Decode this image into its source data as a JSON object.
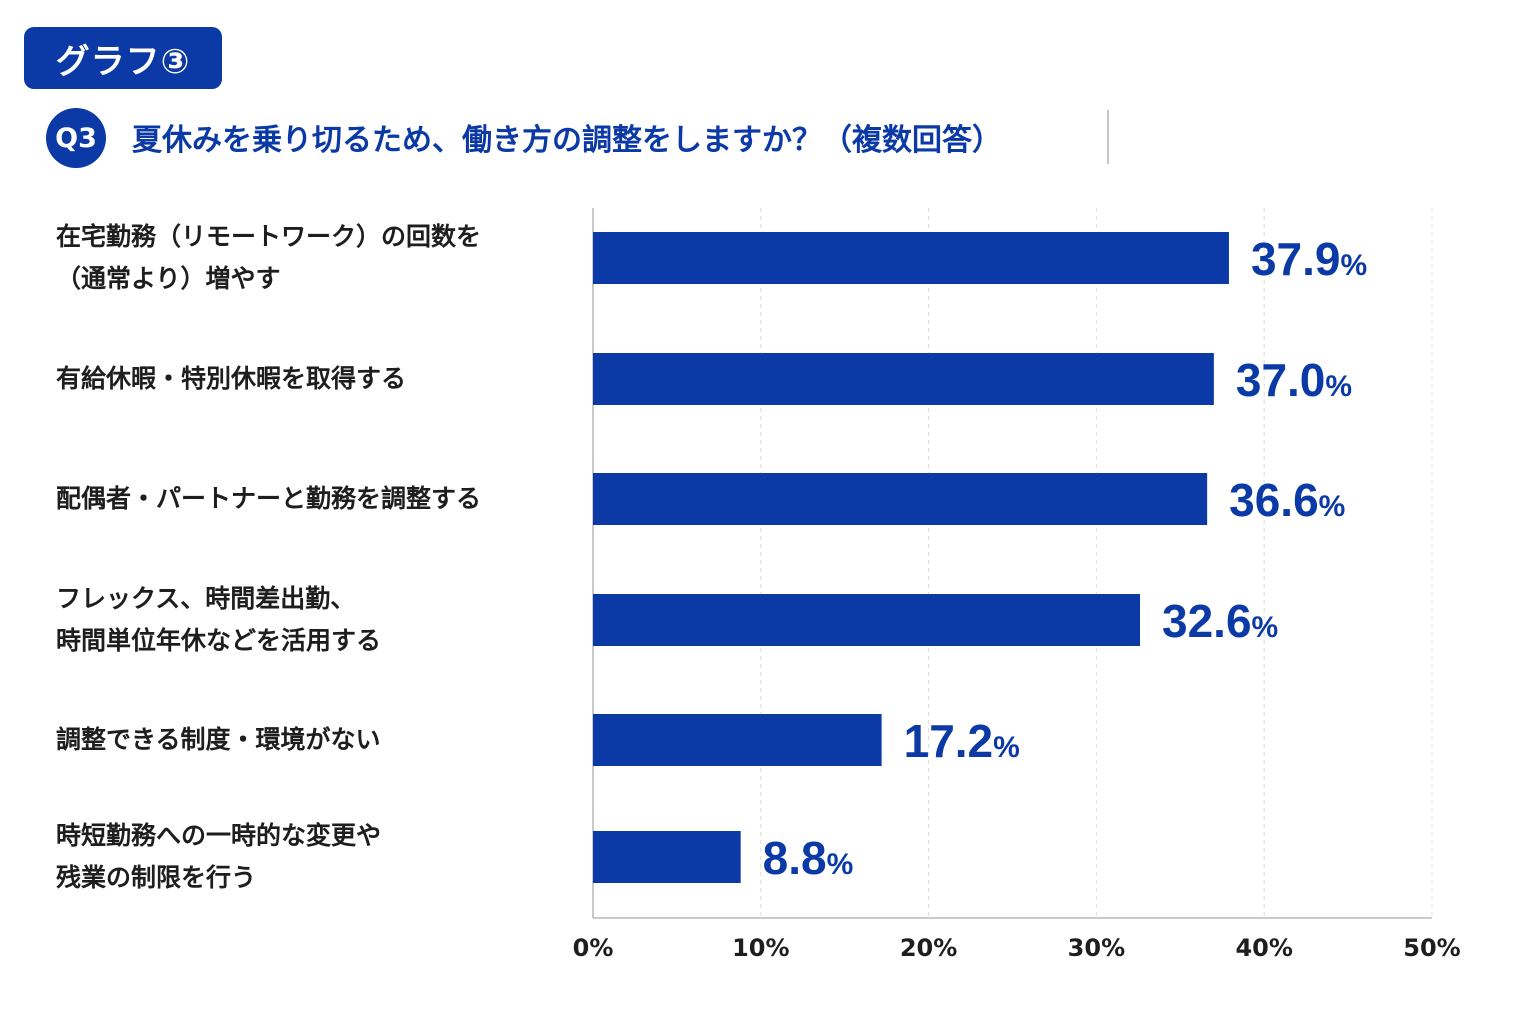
{
  "badge_label": "グラフ③",
  "question": {
    "number": "Q3",
    "text": "夏休みを乗り切るため、働き方の調整をしますか？（複数回答）"
  },
  "colors": {
    "bar": "#0b3aa6",
    "value_text": "#0b3aa6",
    "axis": "#b8b8b8",
    "grid": "#dcdcdc"
  },
  "chart_data": {
    "type": "bar",
    "orientation": "horizontal",
    "categories": [
      "在宅勤務（リモートワーク）の回数を\n（通常より）増やす",
      "有給休暇・特別休暇を取得する",
      "配偶者・パートナーと勤務を調整する",
      "フレックス、時間差出勤、\n時間単位年休などを活用する",
      "調整できる制度・環境がない",
      "時短勤務への一時的な変更や\n残業の制限を行う"
    ],
    "values": [
      37.9,
      37.0,
      36.6,
      32.6,
      17.2,
      8.8
    ],
    "value_labels": [
      "37.9",
      "37.0",
      "36.6",
      "32.6",
      "17.2",
      "8.8"
    ],
    "value_unit": "%",
    "xlim": [
      0,
      50
    ],
    "ticks": [
      0,
      10,
      20,
      30,
      40,
      50
    ],
    "tick_labels": [
      "0%",
      "10%",
      "20%",
      "30%",
      "40%",
      "50%"
    ],
    "grid": true
  }
}
